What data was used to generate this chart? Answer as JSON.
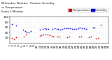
{
  "title_left": "Milwaukee Weather  Outdoor Humidity",
  "title_right": "vs Temperature",
  "title_sub": "Every 5 Minutes",
  "blue_color": "#0000cc",
  "red_color": "#cc0000",
  "legend_blue_label": "Humidity",
  "legend_red_label": "Temperature",
  "bg_color": "#ffffff",
  "grid_color": "#bbbbbb",
  "ylim": [
    0,
    100
  ],
  "yticks": [
    20,
    40,
    60,
    80,
    100
  ],
  "ytick_labels": [
    "20",
    "40",
    "60",
    "80",
    "100"
  ],
  "marker_size": 1.5,
  "tick_fontsize": 3.2,
  "blue_points": [
    [
      0.02,
      72
    ],
    [
      0.06,
      68
    ],
    [
      0.13,
      52
    ],
    [
      0.15,
      45
    ],
    [
      0.17,
      40
    ],
    [
      0.19,
      42
    ],
    [
      0.21,
      46
    ],
    [
      0.3,
      52
    ],
    [
      0.33,
      55
    ],
    [
      0.35,
      57
    ],
    [
      0.37,
      55
    ],
    [
      0.39,
      53
    ],
    [
      0.43,
      55
    ],
    [
      0.45,
      57
    ],
    [
      0.47,
      55
    ],
    [
      0.49,
      53
    ],
    [
      0.51,
      52
    ],
    [
      0.53,
      54
    ],
    [
      0.55,
      56
    ],
    [
      0.57,
      57
    ],
    [
      0.59,
      57
    ],
    [
      0.61,
      56
    ],
    [
      0.63,
      55
    ],
    [
      0.65,
      54
    ],
    [
      0.67,
      55
    ],
    [
      0.69,
      57
    ],
    [
      0.71,
      58
    ],
    [
      0.73,
      57
    ],
    [
      0.75,
      56
    ],
    [
      0.77,
      55
    ],
    [
      0.84,
      60
    ],
    [
      0.86,
      58
    ],
    [
      0.92,
      70
    ]
  ],
  "red_points": [
    [
      0.02,
      20
    ],
    [
      0.04,
      16
    ],
    [
      0.06,
      22
    ],
    [
      0.14,
      26
    ],
    [
      0.16,
      32
    ],
    [
      0.3,
      28
    ],
    [
      0.32,
      30
    ],
    [
      0.34,
      32
    ],
    [
      0.36,
      33
    ],
    [
      0.38,
      32
    ],
    [
      0.4,
      30
    ],
    [
      0.42,
      28
    ],
    [
      0.44,
      26
    ],
    [
      0.48,
      25
    ],
    [
      0.5,
      24
    ],
    [
      0.58,
      22
    ],
    [
      0.6,
      24
    ],
    [
      0.7,
      25
    ],
    [
      0.72,
      26
    ],
    [
      0.8,
      22
    ],
    [
      0.82,
      25
    ],
    [
      0.87,
      18
    ],
    [
      0.89,
      20
    ]
  ],
  "n_xticks": 34
}
